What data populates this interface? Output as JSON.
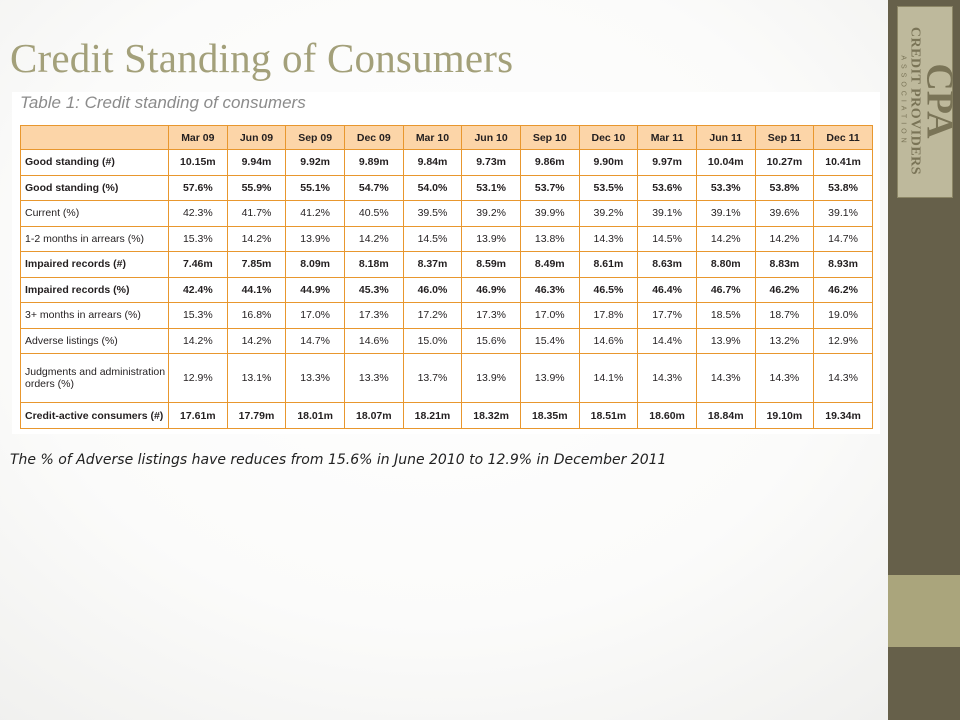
{
  "title": "Credit Standing of Consumers",
  "table": {
    "caption": "Table 1: Credit standing of consumers",
    "columns": [
      "Mar 09",
      "Jun 09",
      "Sep 09",
      "Dec 09",
      "Mar 10",
      "Jun 10",
      "Sep 10",
      "Dec 10",
      "Mar 11",
      "Jun 11",
      "Sep 11",
      "Dec 11"
    ],
    "rows": [
      {
        "label": "Good standing (#)",
        "bold": true,
        "values": [
          "10.15m",
          "9.94m",
          "9.92m",
          "9.89m",
          "9.84m",
          "9.73m",
          "9.86m",
          "9.90m",
          "9.97m",
          "10.04m",
          "10.27m",
          "10.41m"
        ]
      },
      {
        "label": "Good standing (%)",
        "bold": true,
        "values": [
          "57.6%",
          "55.9%",
          "55.1%",
          "54.7%",
          "54.0%",
          "53.1%",
          "53.7%",
          "53.5%",
          "53.6%",
          "53.3%",
          "53.8%",
          "53.8%"
        ]
      },
      {
        "label": "Current (%)",
        "bold": false,
        "values": [
          "42.3%",
          "41.7%",
          "41.2%",
          "40.5%",
          "39.5%",
          "39.2%",
          "39.9%",
          "39.2%",
          "39.1%",
          "39.1%",
          "39.6%",
          "39.1%"
        ]
      },
      {
        "label": "1-2 months in arrears (%)",
        "bold": false,
        "values": [
          "15.3%",
          "14.2%",
          "13.9%",
          "14.2%",
          "14.5%",
          "13.9%",
          "13.8%",
          "14.3%",
          "14.5%",
          "14.2%",
          "14.2%",
          "14.7%"
        ]
      },
      {
        "label": "Impaired records (#)",
        "bold": true,
        "values": [
          "7.46m",
          "7.85m",
          "8.09m",
          "8.18m",
          "8.37m",
          "8.59m",
          "8.49m",
          "8.61m",
          "8.63m",
          "8.80m",
          "8.83m",
          "8.93m"
        ]
      },
      {
        "label": "Impaired records (%)",
        "bold": true,
        "values": [
          "42.4%",
          "44.1%",
          "44.9%",
          "45.3%",
          "46.0%",
          "46.9%",
          "46.3%",
          "46.5%",
          "46.4%",
          "46.7%",
          "46.2%",
          "46.2%"
        ]
      },
      {
        "label": "3+ months in arrears (%)",
        "bold": false,
        "values": [
          "15.3%",
          "16.8%",
          "17.0%",
          "17.3%",
          "17.2%",
          "17.3%",
          "17.0%",
          "17.8%",
          "17.7%",
          "18.5%",
          "18.7%",
          "19.0%"
        ]
      },
      {
        "label": "Adverse listings (%)",
        "bold": false,
        "values": [
          "14.2%",
          "14.2%",
          "14.7%",
          "14.6%",
          "15.0%",
          "15.6%",
          "15.4%",
          "14.6%",
          "14.4%",
          "13.9%",
          "13.2%",
          "12.9%"
        ]
      },
      {
        "label": "Judgments and administration orders (%)",
        "bold": false,
        "values": [
          "12.9%",
          "13.1%",
          "13.3%",
          "13.3%",
          "13.7%",
          "13.9%",
          "13.9%",
          "14.1%",
          "14.3%",
          "14.3%",
          "14.3%",
          "14.3%"
        ]
      },
      {
        "label": "Credit-active consumers (#)",
        "bold": true,
        "values": [
          "17.61m",
          "17.79m",
          "18.01m",
          "18.07m",
          "18.21m",
          "18.32m",
          "18.35m",
          "18.51m",
          "18.60m",
          "18.84m",
          "19.10m",
          "19.34m"
        ]
      }
    ]
  },
  "footnote": "The % of Adverse listings have reduces from 15.6% in June 2010 to 12.9% in December 2011",
  "logo": {
    "main": "CPA",
    "sub": "CREDIT PROVIDERS",
    "assoc": "ASSOCIATION"
  },
  "colors": {
    "title": "#a3a07a",
    "table_border": "#e8972e",
    "table_header": "#fcd5a8",
    "sidebar": "#66604a",
    "sidebar_accent": "#aaa57c"
  }
}
